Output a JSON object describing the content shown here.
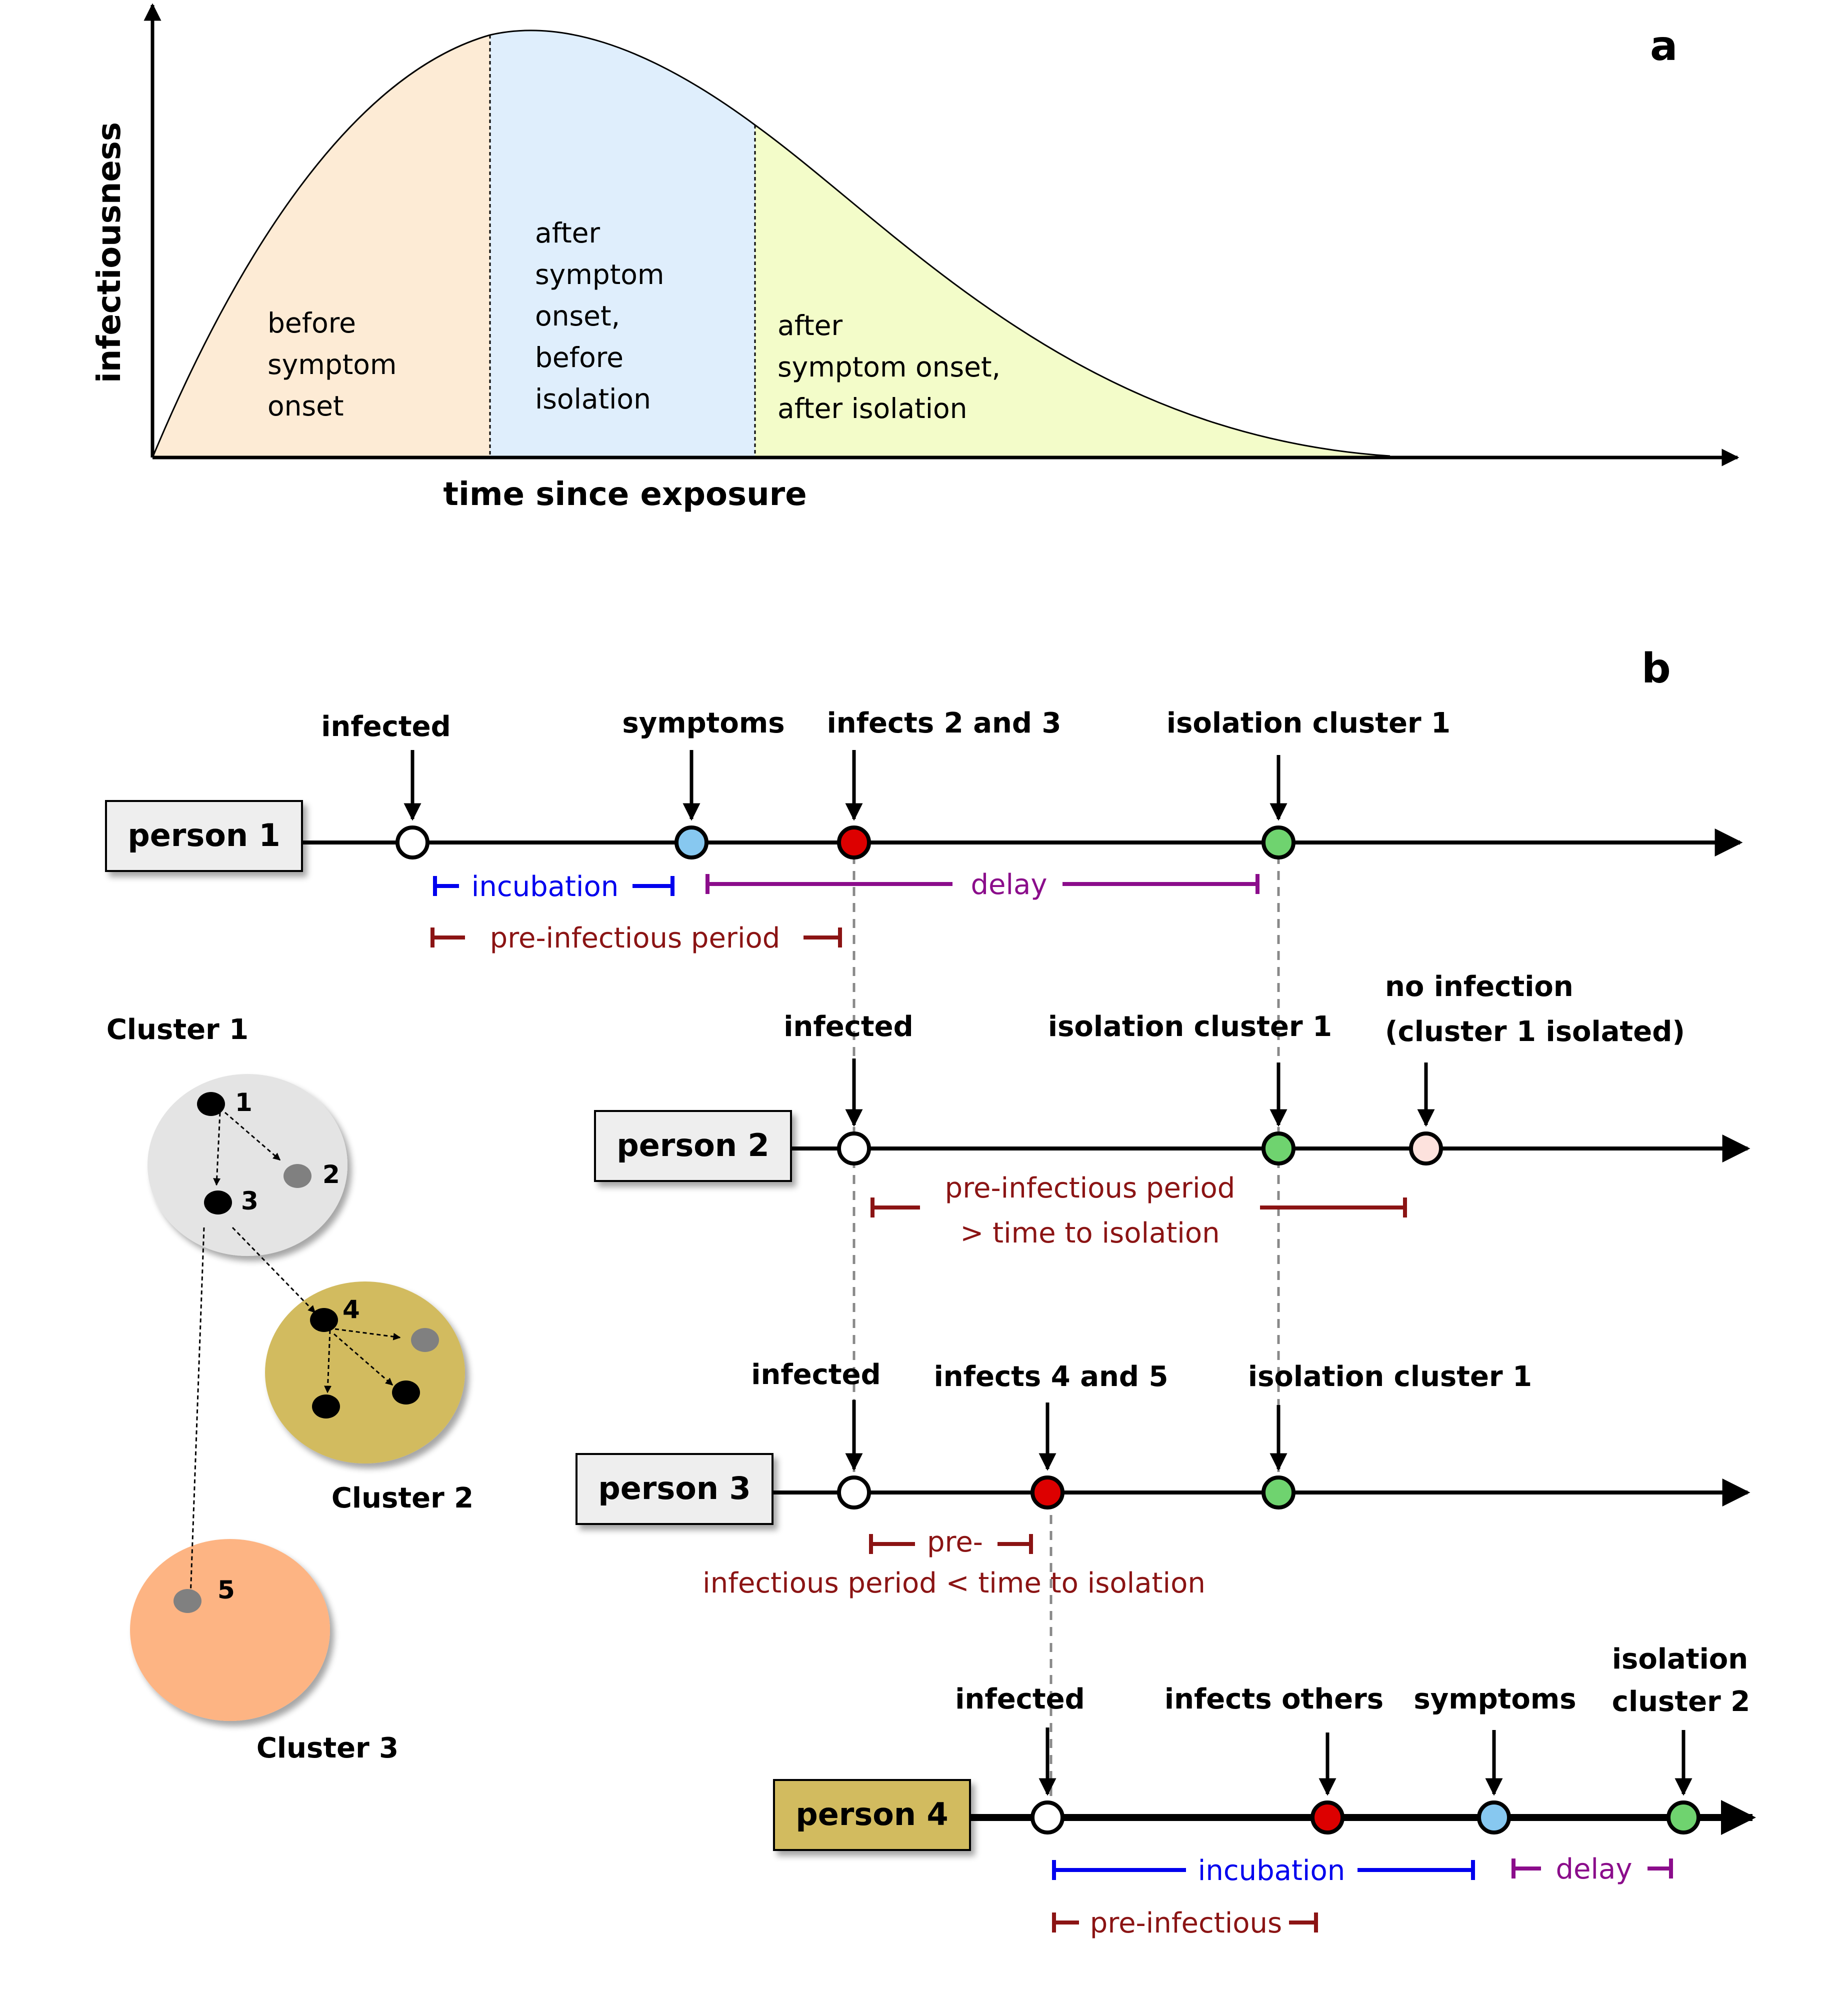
{
  "panel_a": {
    "label": "a",
    "y_axis_label": "infectiousness",
    "x_axis_label": "time since exposure",
    "regions": [
      {
        "lines": [
          "before",
          "symptom",
          "onset"
        ],
        "color": "#fdebd5"
      },
      {
        "lines": [
          "after",
          "symptom",
          "onset,",
          "before",
          "isolation"
        ],
        "color": "#dfeefc"
      },
      {
        "lines": [
          "after",
          "symptom onset,",
          "after isolation"
        ],
        "color": "#f3fcc9"
      }
    ]
  },
  "panel_b": {
    "label": "b",
    "colors": {
      "incubation": "#0000ee",
      "delay": "#8b0d8b",
      "pre_infectious": "#8b1414",
      "infected_marker": "#ffffff",
      "symptoms_marker": "#87c8f0",
      "infects_marker": "#dd0000",
      "isolation_marker": "#6fd36f",
      "no_infection_marker": "#fde2dd"
    },
    "persons": [
      {
        "name": "person 1",
        "events": [
          "infected",
          "symptoms",
          "infects 2 and 3",
          "isolation cluster 1"
        ],
        "intervals": [
          "incubation",
          "delay",
          "pre-infectious period"
        ]
      },
      {
        "name": "person 2",
        "events": [
          "infected",
          "isolation cluster 1",
          "no infection",
          "(cluster 1 isolated)"
        ],
        "intervals": [
          "pre-infectious period",
          "> time to isolation"
        ]
      },
      {
        "name": "person 3",
        "events": [
          "infected",
          "infects 4 and 5",
          "isolation cluster 1"
        ],
        "intervals": [
          "pre-",
          "infectious period < time to isolation"
        ]
      },
      {
        "name": "person 4",
        "events": [
          "infected",
          "infects others",
          "symptoms",
          "isolation",
          "cluster 2"
        ],
        "intervals": [
          "incubation",
          "delay",
          "pre-infectious"
        ]
      }
    ],
    "clusters": [
      {
        "name": "Cluster 1",
        "nodes": [
          "1",
          "2",
          "3"
        ],
        "color": "#e4e4e4"
      },
      {
        "name": "Cluster 2",
        "nodes": [
          "4"
        ],
        "color": "#d2bb5e"
      },
      {
        "name": "Cluster 3",
        "nodes": [
          "5"
        ],
        "color": "#fdb483"
      }
    ]
  }
}
